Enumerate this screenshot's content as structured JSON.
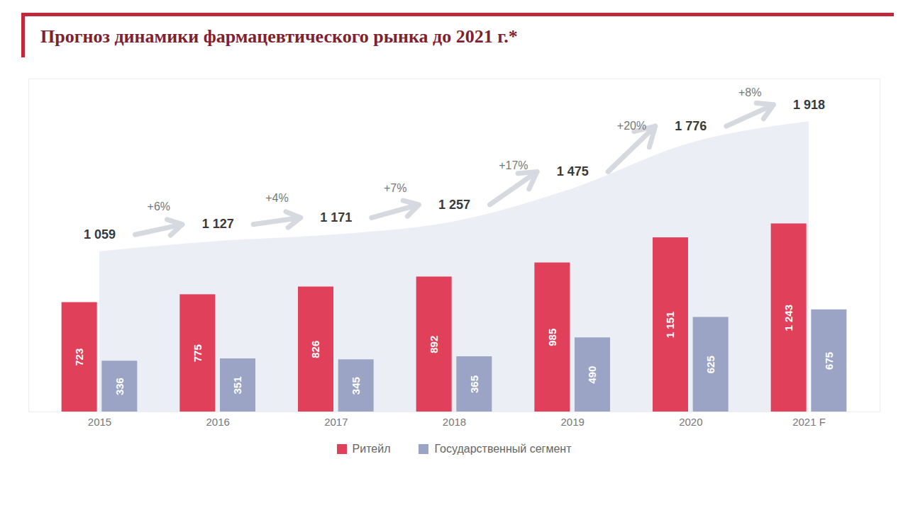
{
  "chart_data": {
    "type": "bar",
    "title": "Прогноз динамики фармацевтического рынка до 2021 г.*",
    "categories": [
      "2015",
      "2016",
      "2017",
      "2018",
      "2019",
      "2020",
      "2021 F"
    ],
    "series": [
      {
        "name": "Ритейл",
        "color": "#e0405a",
        "values": [
          723,
          775,
          826,
          892,
          985,
          1151,
          1243
        ],
        "value_labels": [
          "723",
          "775",
          "826",
          "892",
          "985",
          "1 151",
          "1 243"
        ]
      },
      {
        "name": "Государственный сегмент",
        "color": "#9ba4c4",
        "values": [
          336,
          351,
          345,
          365,
          490,
          625,
          675
        ],
        "value_labels": [
          "336",
          "351",
          "345",
          "365",
          "490",
          "625",
          "675"
        ]
      }
    ],
    "totals": {
      "values": [
        1059,
        1127,
        1171,
        1257,
        1475,
        1776,
        1918
      ],
      "value_labels": [
        "1 059",
        "1 127",
        "1 171",
        "1 257",
        "1 475",
        "1 776",
        "1 918"
      ]
    },
    "growth": {
      "values": [
        6,
        4,
        7,
        17,
        20,
        8
      ],
      "value_labels": [
        "+6%",
        "+4%",
        "+7%",
        "+17%",
        "+20%",
        "+8%"
      ]
    },
    "ylim": [
      0,
      2200
    ],
    "data_labels": true,
    "tick_labels": "x",
    "legend": "bottom"
  }
}
